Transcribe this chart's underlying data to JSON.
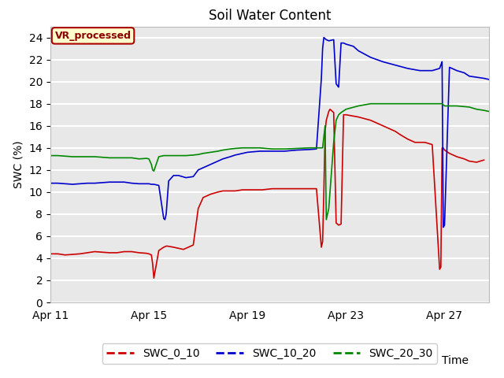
{
  "title": "Soil Water Content",
  "xlabel": "Time",
  "ylabel": "SWC (%)",
  "ylim": [
    0,
    25
  ],
  "yticks": [
    0,
    2,
    4,
    6,
    8,
    10,
    12,
    14,
    16,
    18,
    20,
    22,
    24
  ],
  "background_color": "#e8e8e8",
  "annotation_text": "VR_processed",
  "annotation_bg": "#ffffcc",
  "annotation_border": "#aa0000",
  "legend_entries": [
    "SWC_0_10",
    "SWC_10_20",
    "SWC_20_30"
  ],
  "line_colors": [
    "#cc0000",
    "#0000cc",
    "#008800"
  ],
  "series": {
    "SWC_0_10": {
      "x": [
        0.0,
        0.3,
        0.6,
        0.9,
        1.2,
        1.5,
        1.8,
        2.1,
        2.4,
        2.7,
        3.0,
        3.3,
        3.6,
        3.9,
        4.0,
        4.1,
        4.15,
        4.2,
        4.4,
        4.6,
        4.7,
        4.75,
        5.0,
        5.2,
        5.4,
        5.6,
        5.8,
        6.0,
        6.2,
        6.5,
        6.8,
        7.0,
        7.3,
        7.5,
        7.8,
        8.0,
        8.3,
        8.6,
        9.0,
        9.5,
        10.0,
        10.3,
        10.5,
        10.8,
        11.0,
        11.05,
        11.1,
        11.15,
        11.2,
        11.3,
        11.35,
        11.4,
        11.5,
        11.6,
        11.7,
        11.8,
        11.9,
        12.0,
        12.5,
        13.0,
        13.5,
        14.0,
        14.2,
        14.5,
        14.8,
        15.0,
        15.2,
        15.5,
        15.8,
        15.85,
        15.9,
        15.95,
        16.0,
        16.2,
        16.5,
        16.8,
        17.0,
        17.3,
        17.6
      ],
      "y": [
        4.4,
        4.4,
        4.3,
        4.35,
        4.4,
        4.5,
        4.6,
        4.55,
        4.5,
        4.5,
        4.6,
        4.6,
        4.5,
        4.45,
        4.4,
        4.3,
        3.5,
        2.2,
        4.7,
        5.0,
        5.1,
        5.1,
        5.0,
        4.9,
        4.8,
        5.0,
        5.2,
        8.5,
        9.5,
        9.8,
        10.0,
        10.1,
        10.1,
        10.1,
        10.2,
        10.2,
        10.2,
        10.2,
        10.3,
        10.3,
        10.3,
        10.3,
        10.3,
        10.3,
        5.0,
        5.5,
        10.0,
        15.5,
        16.5,
        17.3,
        17.5,
        17.4,
        17.2,
        7.2,
        7.0,
        7.1,
        17.0,
        17.0,
        16.8,
        16.5,
        16.0,
        15.5,
        15.2,
        14.8,
        14.5,
        14.5,
        14.5,
        14.3,
        3.0,
        3.2,
        14.0,
        14.0,
        13.8,
        13.5,
        13.2,
        13.0,
        12.8,
        12.7,
        12.9
      ]
    },
    "SWC_10_20": {
      "x": [
        0.0,
        0.3,
        0.6,
        0.9,
        1.2,
        1.5,
        1.8,
        2.1,
        2.4,
        2.7,
        3.0,
        3.3,
        3.6,
        3.9,
        4.0,
        4.1,
        4.2,
        4.4,
        4.6,
        4.65,
        4.7,
        4.8,
        5.0,
        5.2,
        5.5,
        5.8,
        6.0,
        6.2,
        6.5,
        6.8,
        7.0,
        7.3,
        7.5,
        7.8,
        8.0,
        8.5,
        9.0,
        9.5,
        10.0,
        10.5,
        10.8,
        11.0,
        11.05,
        11.1,
        11.15,
        11.2,
        11.3,
        11.5,
        11.6,
        11.7,
        11.8,
        11.9,
        12.0,
        12.3,
        12.5,
        13.0,
        13.5,
        14.0,
        14.5,
        15.0,
        15.5,
        15.8,
        15.85,
        15.9,
        15.95,
        16.0,
        16.2,
        16.5,
        16.8,
        17.0,
        17.3,
        17.6,
        17.8
      ],
      "y": [
        10.8,
        10.8,
        10.75,
        10.7,
        10.75,
        10.8,
        10.8,
        10.85,
        10.9,
        10.9,
        10.9,
        10.8,
        10.75,
        10.75,
        10.75,
        10.7,
        10.7,
        10.6,
        7.6,
        7.5,
        8.0,
        11.0,
        11.5,
        11.5,
        11.3,
        11.4,
        12.0,
        12.2,
        12.5,
        12.8,
        13.0,
        13.2,
        13.35,
        13.5,
        13.6,
        13.7,
        13.7,
        13.7,
        13.8,
        13.85,
        13.9,
        20.3,
        23.0,
        24.0,
        23.9,
        23.8,
        23.7,
        23.8,
        19.8,
        19.5,
        23.5,
        23.5,
        23.4,
        23.2,
        22.8,
        22.2,
        21.8,
        21.5,
        21.2,
        21.0,
        21.0,
        21.2,
        21.5,
        21.8,
        6.8,
        7.0,
        21.3,
        21.0,
        20.8,
        20.5,
        20.4,
        20.3,
        20.2
      ]
    },
    "SWC_20_30": {
      "x": [
        0.0,
        0.3,
        0.6,
        0.9,
        1.2,
        1.5,
        1.8,
        2.1,
        2.4,
        2.7,
        3.0,
        3.3,
        3.6,
        3.9,
        4.0,
        4.1,
        4.15,
        4.2,
        4.4,
        4.6,
        4.8,
        5.0,
        5.2,
        5.5,
        5.8,
        6.0,
        6.2,
        6.5,
        6.8,
        7.0,
        7.3,
        7.5,
        7.8,
        8.0,
        8.5,
        9.0,
        9.5,
        10.0,
        10.5,
        10.8,
        11.0,
        11.05,
        11.1,
        11.15,
        11.2,
        11.3,
        11.5,
        11.6,
        11.7,
        11.8,
        12.0,
        12.5,
        13.0,
        13.5,
        14.0,
        14.5,
        15.0,
        15.5,
        15.8,
        15.85,
        15.9,
        16.0,
        16.5,
        17.0,
        17.3,
        17.6,
        17.8
      ],
      "y": [
        13.3,
        13.3,
        13.25,
        13.2,
        13.2,
        13.2,
        13.2,
        13.15,
        13.1,
        13.1,
        13.1,
        13.1,
        13.0,
        13.05,
        13.0,
        12.5,
        12.0,
        11.9,
        13.2,
        13.3,
        13.3,
        13.3,
        13.3,
        13.3,
        13.35,
        13.4,
        13.5,
        13.6,
        13.7,
        13.8,
        13.9,
        13.95,
        14.0,
        14.0,
        14.0,
        13.9,
        13.9,
        13.95,
        14.0,
        14.0,
        14.0,
        14.0,
        15.0,
        16.0,
        7.5,
        8.5,
        14.5,
        16.5,
        17.0,
        17.2,
        17.5,
        17.8,
        18.0,
        18.0,
        18.0,
        18.0,
        18.0,
        18.0,
        18.0,
        18.0,
        18.0,
        17.8,
        17.8,
        17.7,
        17.5,
        17.4,
        17.3
      ]
    }
  },
  "xtick_positions": [
    0,
    4,
    8,
    12,
    16
  ],
  "xtick_labels": [
    "Apr 11",
    "Apr 15",
    "Apr 19",
    "Apr 23",
    "Apr 27"
  ],
  "title_fontsize": 12,
  "axis_label_fontsize": 10,
  "tick_fontsize": 10
}
